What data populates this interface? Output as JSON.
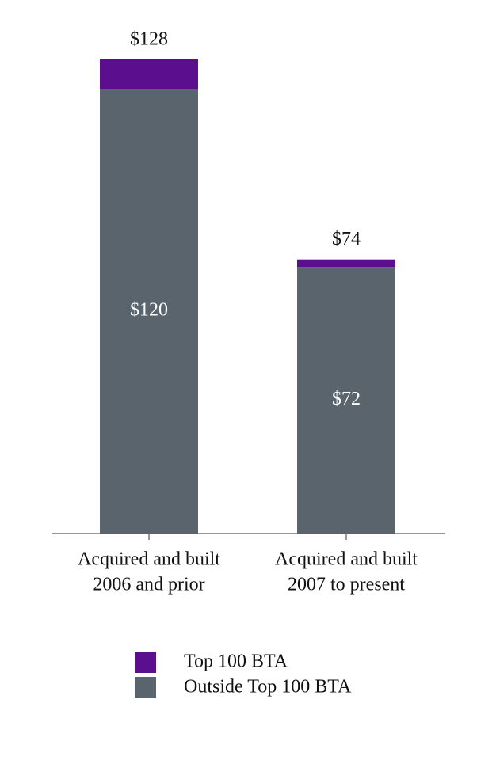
{
  "chart_data": {
    "type": "stacked-bar",
    "categories": [
      [
        "Acquired and built",
        "2006 and prior"
      ],
      [
        "Acquired and built",
        "2007 to present"
      ]
    ],
    "series": [
      {
        "name": "Outside Top 100 BTA",
        "color": "#5a646c",
        "values": [
          120,
          72
        ],
        "value_labels": [
          "$120",
          "$72"
        ]
      },
      {
        "name": "Top 100 BTA",
        "color": "#5b0f8e",
        "values": [
          8,
          2
        ]
      }
    ],
    "totals": [
      128,
      74
    ],
    "total_labels": [
      "$128",
      "$74"
    ]
  }
}
